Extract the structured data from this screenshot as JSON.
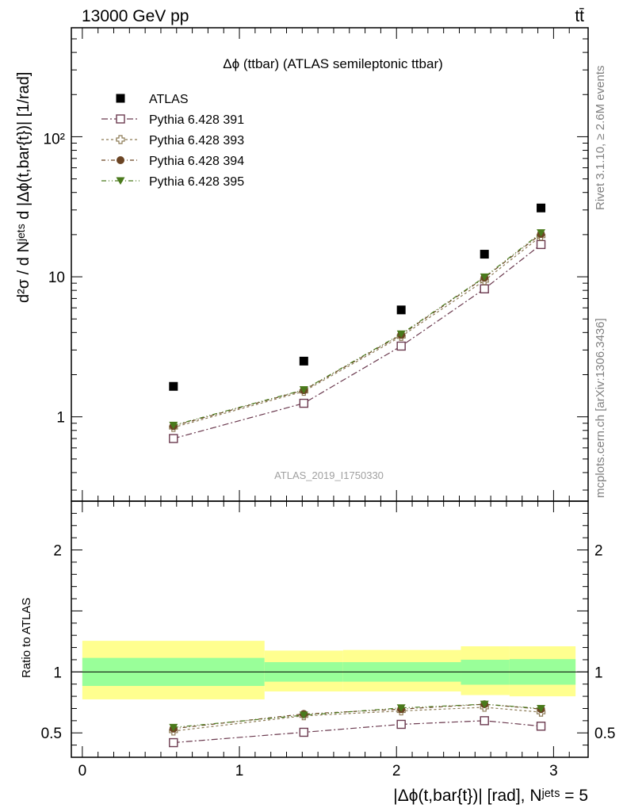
{
  "header": {
    "energy_label": "13000 GeV pp",
    "process_label": "tt̄"
  },
  "side_labels": {
    "rivet": "Rivet 3.1.10, ≥ 2.6M events",
    "mcplots": "mcplots.cern.ch [arXiv:1306.3436]"
  },
  "chart_data": [
    {
      "type": "scatter",
      "title": "Δϕ (ttbar) (ATLAS semileptonic ttbar)",
      "watermark": "ATLAS_2019_I1750330",
      "ylabel": "d²σ / d Nʲᵉᵗˢ d |Δϕ(t,bar{t})| [1/rad]",
      "yscale": "log",
      "ylim": [
        0.25,
        600
      ],
      "xlim": [
        -0.07,
        3.22
      ],
      "x": [
        0.58,
        1.41,
        2.03,
        2.56,
        2.92
      ],
      "y_ticks": [
        "1",
        "10",
        "10²"
      ],
      "legend_position": "top-left",
      "series": [
        {
          "name": "ATLAS",
          "color": "#000000",
          "marker": "square-filled",
          "values": [
            1.65,
            2.5,
            5.8,
            14.5,
            31
          ]
        },
        {
          "name": "Pythia 6.428 391",
          "color": "#6b3a4f",
          "marker": "square-open",
          "values": [
            0.7,
            1.25,
            3.2,
            8.2,
            17.0
          ]
        },
        {
          "name": "Pythia 6.428 393",
          "color": "#8c7a55",
          "marker": "cross-open",
          "values": [
            0.84,
            1.52,
            3.75,
            9.4,
            19.5
          ]
        },
        {
          "name": "Pythia 6.428 394",
          "color": "#6b4423",
          "marker": "circle-filled",
          "values": [
            0.86,
            1.55,
            3.85,
            9.85,
            20.2
          ]
        },
        {
          "name": "Pythia 6.428 395",
          "color": "#4a7a1c",
          "marker": "triangle-down-filled",
          "values": [
            0.87,
            1.56,
            3.9,
            9.95,
            20.6
          ]
        }
      ]
    },
    {
      "type": "scatter",
      "ylabel": "Ratio to ATLAS",
      "xlabel": "|Δϕ(t,bar{t})| [rad], Nʲᵉᵗˢ = 5",
      "ylim": [
        0.3,
        2.4
      ],
      "xlim": [
        -0.07,
        3.22
      ],
      "x_ticks": [
        "0",
        "1",
        "2",
        "3"
      ],
      "y_ticks": [
        "0.5",
        "1",
        "2"
      ],
      "bands": [
        {
          "x0": 0.0,
          "x1": 1.16,
          "yellow": [
            0.775,
            1.255
          ],
          "green": [
            0.885,
            1.115
          ]
        },
        {
          "x0": 1.16,
          "x1": 1.66,
          "yellow": [
            0.84,
            1.175
          ],
          "green": [
            0.92,
            1.08
          ]
        },
        {
          "x0": 1.66,
          "x1": 2.41,
          "yellow": [
            0.84,
            1.18
          ],
          "green": [
            0.92,
            1.08
          ]
        },
        {
          "x0": 2.41,
          "x1": 2.72,
          "yellow": [
            0.81,
            1.21
          ],
          "green": [
            0.895,
            1.1
          ]
        },
        {
          "x0": 2.72,
          "x1": 3.14,
          "yellow": [
            0.8,
            1.21
          ],
          "green": [
            0.895,
            1.105
          ]
        }
      ],
      "x": [
        0.58,
        1.41,
        2.03,
        2.56,
        2.92
      ],
      "series": [
        {
          "name": "Pythia 6.428 391",
          "color": "#6b3a4f",
          "marker": "square-open",
          "values": [
            0.42,
            0.505,
            0.57,
            0.6,
            0.555
          ]
        },
        {
          "name": "Pythia 6.428 393",
          "color": "#8c7a55",
          "marker": "cross-open",
          "values": [
            0.515,
            0.64,
            0.68,
            0.71,
            0.67
          ]
        },
        {
          "name": "Pythia 6.428 394",
          "color": "#6b4423",
          "marker": "circle-filled",
          "values": [
            0.535,
            0.655,
            0.695,
            0.735,
            0.695
          ]
        },
        {
          "name": "Pythia 6.428 395",
          "color": "#4a7a1c",
          "marker": "triangle-down-filled",
          "values": [
            0.545,
            0.645,
            0.705,
            0.735,
            0.7
          ]
        }
      ]
    }
  ]
}
